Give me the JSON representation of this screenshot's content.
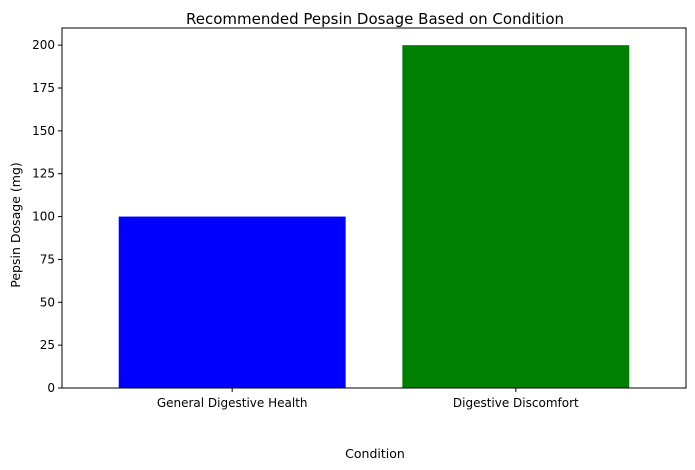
{
  "chart_data": {
    "type": "bar",
    "title": "Recommended Pepsin Dosage Based on Condition",
    "xlabel": "Condition",
    "ylabel": "Pepsin Dosage (mg)",
    "categories": [
      "General Digestive Health",
      "Digestive Discomfort"
    ],
    "values": [
      100,
      200
    ],
    "colors": [
      "#0000ff",
      "#008000"
    ],
    "ylim": [
      0,
      210
    ],
    "yticks": [
      0,
      25,
      50,
      75,
      100,
      125,
      150,
      175,
      200
    ],
    "grid": false,
    "legend": "none"
  }
}
